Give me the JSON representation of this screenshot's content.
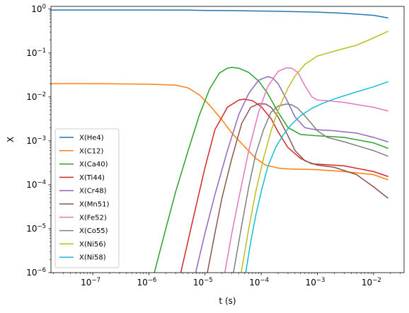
{
  "chart_data": {
    "type": "line",
    "xlabel": "t (s)",
    "ylabel": "X",
    "xscale": "log",
    "yscale": "log",
    "xlim": [
      1.8e-08,
      0.035
    ],
    "ylim": [
      1e-06,
      1.15
    ],
    "xticks": [
      {
        "value": 1e-07,
        "base": "10",
        "exp": "−7"
      },
      {
        "value": 1e-06,
        "base": "10",
        "exp": "−6"
      },
      {
        "value": 1e-05,
        "base": "10",
        "exp": "−5"
      },
      {
        "value": 0.0001,
        "base": "10",
        "exp": "−4"
      },
      {
        "value": 0.001,
        "base": "10",
        "exp": "−3"
      },
      {
        "value": 0.01,
        "base": "10",
        "exp": "−2"
      }
    ],
    "yticks": [
      {
        "value": 1e-06,
        "base": "10",
        "exp": "−6"
      },
      {
        "value": 1e-05,
        "base": "10",
        "exp": "−5"
      },
      {
        "value": 0.0001,
        "base": "10",
        "exp": "−4"
      },
      {
        "value": 0.001,
        "base": "10",
        "exp": "−3"
      },
      {
        "value": 0.01,
        "base": "10",
        "exp": "−2"
      },
      {
        "value": 0.1,
        "base": "10",
        "exp": "−1"
      },
      {
        "value": 1,
        "base": "10",
        "exp": "0"
      }
    ],
    "grid": false,
    "legend_position": "lower-left",
    "series": [
      {
        "name": "X(He4)",
        "color": "#1f77b4",
        "x": [
          1.8e-08,
          1e-07,
          1e-06,
          5e-06,
          1e-05,
          3e-05,
          0.0001,
          0.0003,
          0.001,
          0.003,
          0.01,
          0.018
        ],
        "y": [
          0.95,
          0.95,
          0.95,
          0.945,
          0.93,
          0.92,
          0.9,
          0.88,
          0.85,
          0.8,
          0.72,
          0.63
        ]
      },
      {
        "name": "X(C12)",
        "color": "#ff7f0e",
        "x": [
          1.8e-08,
          1e-07,
          1e-06,
          3e-06,
          5e-06,
          8e-06,
          1.2e-05,
          2e-05,
          3e-05,
          5e-05,
          8e-05,
          0.00012,
          0.0002,
          0.0003,
          0.001,
          0.003,
          0.01,
          0.018
        ],
        "y": [
          0.02,
          0.02,
          0.0195,
          0.0185,
          0.016,
          0.011,
          0.0065,
          0.003,
          0.0015,
          0.00075,
          0.0004,
          0.00028,
          0.00024,
          0.00023,
          0.00022,
          0.0002,
          0.00017,
          0.00013
        ]
      },
      {
        "name": "X(Ca40)",
        "color": "#2ca02c",
        "x": [
          1.25e-06,
          2e-06,
          3e-06,
          5e-06,
          8e-06,
          1.2e-05,
          1.8e-05,
          2.5e-05,
          3e-05,
          4e-05,
          6e-05,
          9e-05,
          0.00013,
          0.0002,
          0.0003,
          0.0005,
          0.001,
          0.003,
          0.01,
          0.018
        ],
        "y": [
          1e-06,
          1e-05,
          7e-05,
          0.0006,
          0.004,
          0.015,
          0.035,
          0.045,
          0.047,
          0.045,
          0.036,
          0.023,
          0.012,
          0.0045,
          0.002,
          0.0014,
          0.0013,
          0.0012,
          0.0009,
          0.00068
        ]
      },
      {
        "name": "X(Ti44)",
        "color": "#d62728",
        "x": [
          3.7e-06,
          6e-06,
          1e-05,
          1.5e-05,
          2.5e-05,
          4e-05,
          5e-05,
          7e-05,
          0.0001,
          0.00015,
          0.0002,
          0.0003,
          0.0005,
          0.0008,
          0.0012,
          0.003,
          0.01,
          0.018
        ],
        "y": [
          1e-06,
          1.5e-05,
          0.00025,
          0.0018,
          0.0058,
          0.0085,
          0.0089,
          0.0082,
          0.006,
          0.0032,
          0.0016,
          0.0007,
          0.0004,
          0.0003,
          0.00029,
          0.00027,
          0.0002,
          0.000155
        ]
      },
      {
        "name": "X(Cr48)",
        "color": "#9467bd",
        "x": [
          6.8e-06,
          1e-05,
          1.5e-05,
          2.5e-05,
          4e-05,
          6e-05,
          9e-05,
          0.00013,
          0.00016,
          0.0002,
          0.00028,
          0.0004,
          0.0006,
          0.0009,
          0.002,
          0.005,
          0.01,
          0.018
        ],
        "y": [
          1e-06,
          8e-06,
          6e-05,
          0.0006,
          0.004,
          0.012,
          0.024,
          0.029,
          0.027,
          0.02,
          0.009,
          0.0035,
          0.002,
          0.0018,
          0.0017,
          0.0015,
          0.0012,
          0.00095
        ]
      },
      {
        "name": "X(Mn51)",
        "color": "#8c564b",
        "x": [
          1.1e-05,
          1.5e-05,
          2e-05,
          3e-05,
          4.5e-05,
          6.5e-05,
          9e-05,
          0.00012,
          0.00015,
          0.0002,
          0.0003,
          0.0004,
          0.0006,
          0.001,
          0.002,
          0.005,
          0.01,
          0.018
        ],
        "y": [
          1e-06,
          8e-06,
          5e-05,
          0.0004,
          0.0025,
          0.0058,
          0.007,
          0.0069,
          0.0058,
          0.0035,
          0.0013,
          0.0006,
          0.00035,
          0.00028,
          0.00025,
          0.00017,
          9e-05,
          5e-05
        ]
      },
      {
        "name": "X(Fe52)",
        "color": "#e377c2",
        "x": [
          2.25e-05,
          3e-05,
          4e-05,
          6e-05,
          9e-05,
          0.00013,
          0.0002,
          0.00028,
          0.00035,
          0.00045,
          0.0006,
          0.0008,
          0.001,
          0.0015,
          0.003,
          0.01,
          0.018
        ],
        "y": [
          1e-06,
          8e-06,
          5e-05,
          0.0006,
          0.0045,
          0.017,
          0.038,
          0.046,
          0.045,
          0.036,
          0.018,
          0.01,
          0.0085,
          0.0082,
          0.0075,
          0.0058,
          0.0048
        ]
      },
      {
        "name": "X(Co55)",
        "color": "#7f7f7f",
        "x": [
          3.2e-05,
          4.5e-05,
          6e-05,
          8e-05,
          0.00011,
          0.00015,
          0.0002,
          0.00028,
          0.00035,
          0.00045,
          0.0006,
          0.0008,
          0.001,
          0.0015,
          0.003,
          0.01,
          0.018
        ],
        "y": [
          1e-06,
          1.2e-05,
          9e-05,
          0.0005,
          0.0018,
          0.0045,
          0.0062,
          0.0069,
          0.0066,
          0.0055,
          0.0037,
          0.0024,
          0.0017,
          0.0012,
          0.00095,
          0.0006,
          0.00045
        ]
      },
      {
        "name": "X(Ni56)",
        "color": "#bcbd22",
        "x": [
          4.4e-05,
          6e-05,
          8e-05,
          0.00011,
          0.00015,
          0.0002,
          0.0003,
          0.0004,
          0.0006,
          0.001,
          0.002,
          0.005,
          0.01,
          0.018
        ],
        "y": [
          1e-06,
          1e-05,
          7e-05,
          0.0004,
          0.0017,
          0.005,
          0.016,
          0.03,
          0.055,
          0.085,
          0.11,
          0.15,
          0.22,
          0.31
        ]
      },
      {
        "name": "X(Ni58)",
        "color": "#17becf",
        "x": [
          5.3e-05,
          6.5e-05,
          8e-05,
          0.0001,
          0.00013,
          0.00018,
          0.00025,
          0.00035,
          0.0005,
          0.0008,
          0.0012,
          0.002,
          0.005,
          0.01,
          0.018
        ],
        "y": [
          1e-06,
          5e-06,
          2e-05,
          7e-05,
          0.00025,
          0.0007,
          0.0014,
          0.0024,
          0.0037,
          0.0055,
          0.007,
          0.009,
          0.013,
          0.017,
          0.022
        ]
      }
    ]
  }
}
